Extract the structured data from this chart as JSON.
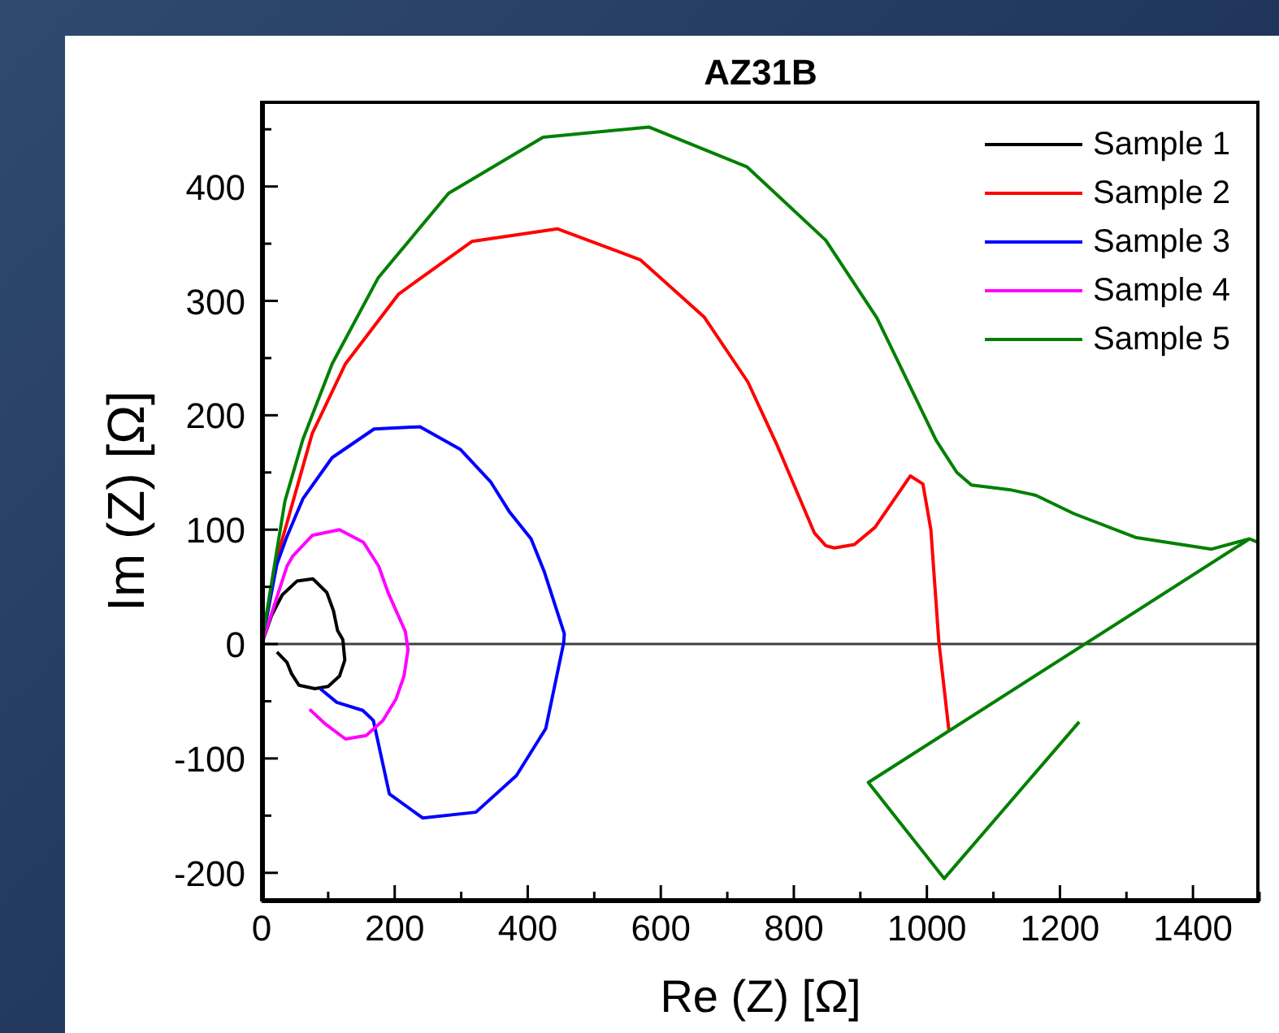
{
  "chart_data": {
    "type": "line",
    "title": "AZ31B",
    "xlabel": "Re (Z)  [Ω]",
    "ylabel": "Im (Z)  [Ω]",
    "xlim": [
      0,
      1500
    ],
    "ylim": [
      -225,
      475
    ],
    "xticks": [
      0,
      {
        "value": 100,
        "label": null
      },
      200,
      {
        "value": 300,
        "label": null
      },
      400,
      {
        "value": 500,
        "label": null
      },
      600,
      {
        "value": 700,
        "label": null
      },
      800,
      {
        "value": 900,
        "label": null
      },
      1000,
      {
        "value": 1100,
        "label": null
      },
      1200,
      {
        "value": 1300,
        "label": null
      },
      1400,
      {
        "value": 1500,
        "label": null
      }
    ],
    "yticks": [
      {
        "value": -200,
        "label": "-200"
      },
      {
        "value": -150,
        "label": null
      },
      {
        "value": -100,
        "label": "-100"
      },
      {
        "value": -50,
        "label": null
      },
      0,
      {
        "value": 50,
        "label": null
      },
      100,
      {
        "value": 150,
        "label": null
      },
      200,
      {
        "value": 250,
        "label": null
      },
      300,
      {
        "value": 350,
        "label": null
      },
      400,
      {
        "value": 450,
        "label": null
      }
    ],
    "grid": false,
    "legend": "top right",
    "marker": "none",
    "line_style": "solid",
    "ref_lines": [
      {
        "axis": "y",
        "value": 0,
        "color": "#404040"
      }
    ],
    "series": [
      {
        "name": "Sample 1",
        "color": "#000000",
        "x": [
          0,
          15,
          31,
          53,
          77,
          98,
          108,
          114,
          122,
          125,
          117,
          100,
          80,
          56,
          45,
          38,
          23
        ],
        "values": [
          0,
          25,
          43,
          55,
          57,
          45,
          29,
          12,
          4,
          -14,
          -28,
          -37,
          -39,
          -36,
          -26,
          -16,
          -7
        ]
      },
      {
        "name": "Sample 2",
        "color": "#ff0000",
        "x": [
          0,
          23,
          76,
          126,
          206,
          316,
          445,
          569,
          665,
          731,
          774,
          831,
          848,
          861,
          891,
          922,
          975,
          994,
          1006,
          1018,
          1033
        ],
        "values": [
          0,
          75,
          184,
          245,
          306,
          352,
          363,
          336,
          286,
          229,
          175,
          97,
          86,
          84,
          87,
          102,
          147,
          140,
          100,
          2,
          -75
        ]
      },
      {
        "name": "Sample 3",
        "color": "#0000ff",
        "x": [
          0,
          23,
          38,
          62,
          106,
          169,
          238,
          299,
          344,
          372,
          405,
          425,
          455,
          454,
          427,
          383,
          322,
          242,
          192,
          168,
          163,
          152,
          113,
          88
        ],
        "values": [
          0,
          70,
          94,
          127,
          163,
          188,
          190,
          170,
          142,
          116,
          92,
          63,
          9,
          1,
          -74,
          -115,
          -147,
          -152,
          -131,
          -67,
          -64,
          -58,
          -51,
          -39
        ]
      },
      {
        "name": "Sample 4",
        "color": "#ff00ff",
        "x": [
          0,
          38,
          47,
          76,
          117,
          153,
          176,
          190,
          216,
          220,
          214,
          202,
          182,
          157,
          126,
          96,
          72
        ],
        "values": [
          0,
          68,
          77,
          95,
          100,
          89,
          68,
          45,
          11,
          -5,
          -28,
          -48,
          -67,
          -80,
          -83,
          -70,
          -57
        ]
      },
      {
        "name": "Sample 5",
        "color": "#008000",
        "x": [
          0,
          19,
          35,
          62,
          106,
          175,
          281,
          423,
          582,
          730,
          848,
          925,
          1014,
          1045,
          1067,
          1124,
          1164,
          1221,
          1315,
          1428,
          1485,
          1497,
          1485,
          912,
          1026,
          1229
        ],
        "values": [
          0,
          68,
          125,
          179,
          245,
          320,
          394,
          443,
          452,
          417,
          353,
          285,
          178,
          150,
          139,
          135,
          130,
          114,
          93,
          83,
          92,
          89,
          92,
          -121,
          -205,
          -68
        ]
      }
    ]
  }
}
